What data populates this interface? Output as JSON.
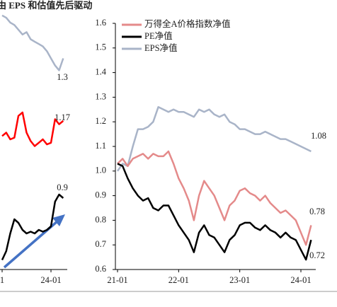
{
  "title": "由 EPS 和估值先后驱动",
  "chart_data": [
    {
      "type": "line",
      "categories": [
        "1",
        null,
        null,
        null,
        null,
        null,
        null,
        null,
        null,
        null,
        null,
        null,
        "24-01",
        null,
        null,
        null
      ],
      "series": [
        {
          "color": "#a9b4c8",
          "ylim": [
            1.1,
            1.5
          ],
          "values": [
            1.48,
            1.47,
            1.45,
            1.44,
            1.42,
            1.4,
            1.41,
            1.38,
            1.37,
            1.36,
            1.35,
            1.33,
            1.3,
            1.27,
            1.25,
            1.3
          ]
        },
        {
          "color": "#ff0000",
          "ylim": [
            0.9,
            1.3
          ],
          "values": [
            1.08,
            1.1,
            1.06,
            1.07,
            1.2,
            1.22,
            1.1,
            1.05,
            1.02,
            1.04,
            1.06,
            1.03,
            1.04,
            1.18,
            1.15,
            1.17
          ]
        },
        {
          "color": "#000000",
          "ylim": [
            0.5,
            1.0
          ],
          "values": [
            0.55,
            0.6,
            0.7,
            0.78,
            0.76,
            0.72,
            0.7,
            0.71,
            0.7,
            0.72,
            0.71,
            0.72,
            0.74,
            0.88,
            0.92,
            0.9
          ]
        }
      ]
    },
    {
      "type": "line",
      "categories": [
        "21-01",
        null,
        null,
        null,
        null,
        null,
        null,
        null,
        null,
        null,
        null,
        null,
        "22-01",
        null,
        null,
        null,
        null,
        null,
        null,
        null,
        null,
        null,
        null,
        null,
        "23-01",
        null,
        null,
        null,
        null,
        null,
        null,
        null,
        null,
        null,
        null,
        null,
        "24-01",
        null,
        null
      ],
      "ylim": [
        0.6,
        1.6
      ],
      "yticks": [
        0.6,
        0.7,
        0.8,
        0.9,
        {
          "value": 1,
          "label": "1.0"
        },
        1.1,
        1.2,
        1.3,
        1.4,
        1.5,
        1.6
      ],
      "legend": "upper left",
      "series": [
        {
          "name": "万得全A价格指数净值",
          "color": "#e48a8a",
          "values": [
            1.03,
            1.05,
            1.02,
            1.05,
            1.06,
            1.07,
            1.05,
            1.07,
            1.06,
            1.06,
            1.08,
            1.03,
            0.97,
            0.93,
            0.88,
            0.8,
            0.9,
            0.96,
            0.93,
            0.9,
            0.85,
            0.8,
            0.86,
            0.88,
            0.92,
            0.93,
            0.91,
            0.9,
            0.88,
            0.9,
            0.87,
            0.85,
            0.83,
            0.84,
            0.82,
            0.8,
            0.75,
            0.7,
            0.78
          ]
        },
        {
          "name": "PE净值",
          "color": "#000000",
          "values": [
            1.03,
            1.02,
            0.97,
            0.93,
            0.9,
            0.88,
            0.89,
            0.85,
            0.84,
            0.86,
            0.86,
            0.82,
            0.78,
            0.75,
            0.72,
            0.67,
            0.75,
            0.78,
            0.74,
            0.73,
            0.7,
            0.67,
            0.72,
            0.74,
            0.78,
            0.79,
            0.79,
            0.77,
            0.76,
            0.78,
            0.76,
            0.75,
            0.73,
            0.75,
            0.73,
            0.72,
            0.68,
            0.64,
            0.72
          ]
        },
        {
          "name": "EPS净值",
          "color": "#a9b4c8",
          "values": [
            1.0,
            1.03,
            1.02,
            1.1,
            1.17,
            1.17,
            1.18,
            1.2,
            1.26,
            1.25,
            1.24,
            1.25,
            1.24,
            1.24,
            1.23,
            1.22,
            1.25,
            1.24,
            1.25,
            1.23,
            1.22,
            1.23,
            1.2,
            1.19,
            1.17,
            1.17,
            1.16,
            1.15,
            1.15,
            1.16,
            1.15,
            1.14,
            1.13,
            1.13,
            1.12,
            1.11,
            1.1,
            1.09,
            1.08
          ]
        }
      ]
    }
  ]
}
